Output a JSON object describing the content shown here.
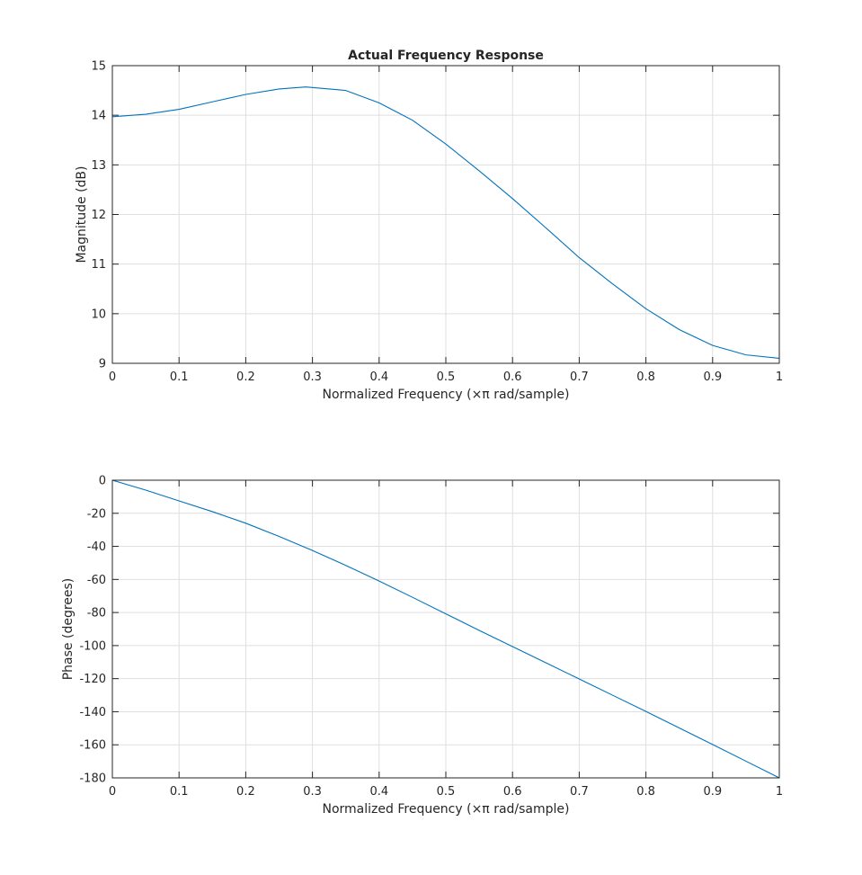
{
  "chart_data": [
    {
      "type": "line",
      "title": "Actual Frequency Response",
      "xlabel": "Normalized Frequency  (×π rad/sample)",
      "ylabel": "Magnitude (dB)",
      "xlim": [
        0,
        1
      ],
      "ylim": [
        9,
        15
      ],
      "xticks": [
        "0",
        "0.1",
        "0.2",
        "0.3",
        "0.4",
        "0.5",
        "0.6",
        "0.7",
        "0.8",
        "0.9",
        "1"
      ],
      "yticks": [
        "9",
        "10",
        "11",
        "12",
        "13",
        "14",
        "15"
      ],
      "grid": true,
      "series": [
        {
          "color": "#0072bd",
          "x": [
            0,
            0.05,
            0.1,
            0.15,
            0.2,
            0.25,
            0.29,
            0.35,
            0.4,
            0.45,
            0.5,
            0.55,
            0.6,
            0.65,
            0.7,
            0.75,
            0.8,
            0.85,
            0.9,
            0.95,
            1.0
          ],
          "y": [
            13.97,
            14.02,
            14.12,
            14.27,
            14.42,
            14.53,
            14.57,
            14.5,
            14.25,
            13.9,
            13.42,
            12.88,
            12.32,
            11.73,
            11.13,
            10.6,
            10.1,
            9.68,
            9.36,
            9.17,
            9.1
          ]
        }
      ]
    },
    {
      "type": "line",
      "title": "",
      "xlabel": "Normalized Frequency  (×π rad/sample)",
      "ylabel": "Phase (degrees)",
      "xlim": [
        0,
        1
      ],
      "ylim": [
        -180,
        0
      ],
      "xticks": [
        "0",
        "0.1",
        "0.2",
        "0.3",
        "0.4",
        "0.5",
        "0.6",
        "0.7",
        "0.8",
        "0.9",
        "1"
      ],
      "yticks": [
        "-180",
        "-160",
        "-140",
        "-120",
        "-100",
        "-80",
        "-60",
        "-40",
        "-20",
        "0"
      ],
      "grid": true,
      "series": [
        {
          "color": "#0072bd",
          "x": [
            0,
            0.05,
            0.1,
            0.15,
            0.2,
            0.25,
            0.3,
            0.35,
            0.4,
            0.45,
            0.5,
            0.55,
            0.6,
            0.65,
            0.7,
            0.75,
            0.8,
            0.85,
            0.9,
            0.95,
            1.0
          ],
          "y": [
            0,
            -6,
            -12.5,
            -19,
            -26,
            -34,
            -42.5,
            -51.5,
            -61,
            -70.8,
            -80.8,
            -90.8,
            -100.6,
            -110.4,
            -120.2,
            -130,
            -139.8,
            -149.8,
            -159.8,
            -169.9,
            -180
          ]
        }
      ]
    }
  ]
}
